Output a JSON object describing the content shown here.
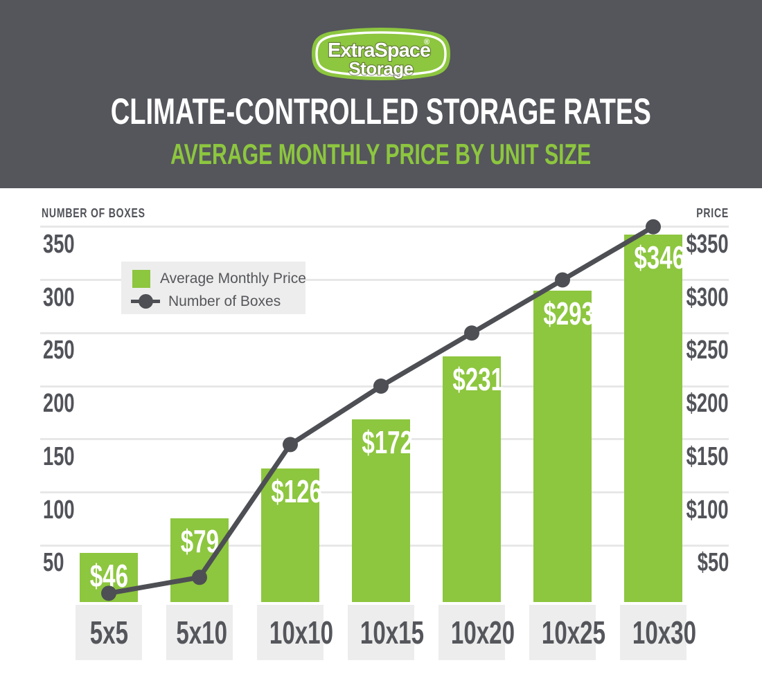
{
  "colors": {
    "header_bg": "#54565b",
    "accent_green": "#8dc63f",
    "text_dark": "#515359",
    "line_dark": "#4d4f54",
    "gridline": "#e7e7e7",
    "legend_bg": "#ededed",
    "category_box_bg": "#ededed",
    "chart_bg": "#ffffff",
    "bar_label_white": "#ffffff"
  },
  "logo": {
    "line1": "ExtraSpace",
    "registered": "®",
    "line2": "Storage"
  },
  "header": {
    "title": "CLIMATE-CONTROLLED STORAGE RATES",
    "subtitle": "AVERAGE MONTHLY PRICE BY UNIT SIZE"
  },
  "chart_data": {
    "type": "bar",
    "title": "CLIMATE-CONTROLLED STORAGE RATES",
    "subtitle": "AVERAGE MONTHLY PRICE BY UNIT SIZE",
    "categories": [
      "5x5",
      "5x10",
      "10x10",
      "10x15",
      "10x20",
      "10x25",
      "10x30"
    ],
    "series": [
      {
        "name": "Average Monthly Price",
        "kind": "bar",
        "color": "#8dc63f",
        "values": [
          46,
          79,
          126,
          172,
          231,
          293,
          346
        ],
        "value_labels": [
          "$46",
          "$79",
          "$126",
          "$172",
          "$231",
          "$293",
          "$346"
        ]
      },
      {
        "name": "Number of Boxes",
        "kind": "line",
        "color": "#4d4f54",
        "values": [
          5,
          20,
          145,
          200,
          250,
          300,
          350
        ],
        "values_estimated_from_gridlines": true
      }
    ],
    "axes": {
      "left": {
        "title": "NUMBER OF BOXES",
        "tick_labels": [
          "350",
          "300",
          "250",
          "200",
          "150",
          "100",
          "50"
        ]
      },
      "right": {
        "title": "PRICE",
        "tick_labels": [
          "$350",
          "$300",
          "$250",
          "$200",
          "$150",
          "$100",
          "$50"
        ]
      },
      "tick_values": [
        350,
        300,
        250,
        200,
        150,
        100,
        50
      ]
    },
    "ylim": [
      0,
      365
    ],
    "grid": "horizontal",
    "legend_position": "top-left"
  }
}
